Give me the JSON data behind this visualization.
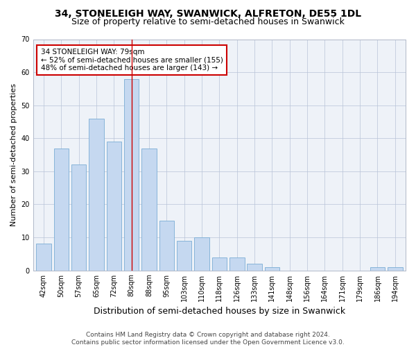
{
  "title1": "34, STONELEIGH WAY, SWANWICK, ALFRETON, DE55 1DL",
  "title2": "Size of property relative to semi-detached houses in Swanwick",
  "xlabel": "Distribution of semi-detached houses by size in Swanwick",
  "ylabel": "Number of semi-detached properties",
  "categories": [
    "42sqm",
    "50sqm",
    "57sqm",
    "65sqm",
    "72sqm",
    "80sqm",
    "88sqm",
    "95sqm",
    "103sqm",
    "110sqm",
    "118sqm",
    "126sqm",
    "133sqm",
    "141sqm",
    "148sqm",
    "156sqm",
    "164sqm",
    "171sqm",
    "179sqm",
    "186sqm",
    "194sqm"
  ],
  "values": [
    8,
    37,
    32,
    46,
    39,
    58,
    37,
    15,
    9,
    10,
    4,
    4,
    2,
    1,
    0,
    0,
    0,
    0,
    0,
    1,
    1
  ],
  "bar_color": "#c5d8f0",
  "bar_edge_color": "#7aadd4",
  "highlight_index": 5,
  "highlight_line_color": "#cc0000",
  "annotation_text": "34 STONELEIGH WAY: 79sqm\n← 52% of semi-detached houses are smaller (155)\n48% of semi-detached houses are larger (143) →",
  "annotation_box_color": "#ffffff",
  "annotation_box_edge": "#cc0000",
  "ylim": [
    0,
    70
  ],
  "yticks": [
    0,
    10,
    20,
    30,
    40,
    50,
    60,
    70
  ],
  "footer": "Contains HM Land Registry data © Crown copyright and database right 2024.\nContains public sector information licensed under the Open Government Licence v3.0.",
  "plot_bg_color": "#eef2f8",
  "title1_fontsize": 10,
  "title2_fontsize": 9,
  "xlabel_fontsize": 9,
  "ylabel_fontsize": 8,
  "tick_fontsize": 7,
  "footer_fontsize": 6.5,
  "annotation_fontsize": 7.5
}
